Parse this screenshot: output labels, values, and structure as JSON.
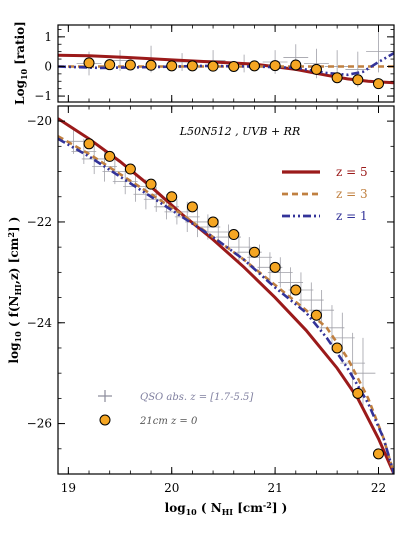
{
  "chart_data": [
    {
      "type": "line",
      "ylabel": "Log10 [ratio]",
      "xlim": [
        18.9,
        22.15
      ],
      "ylim": [
        -1.2,
        1.4
      ],
      "yticks": [
        1,
        0,
        -1
      ],
      "series": [
        {
          "name": "z = 5",
          "color": "#9b1a1a",
          "style": "solid",
          "x": [
            18.9,
            19.2,
            19.6,
            20.0,
            20.4,
            20.8,
            21.2,
            21.5,
            21.7,
            21.9,
            22.15
          ],
          "y": [
            0.38,
            0.36,
            0.3,
            0.22,
            0.15,
            0.08,
            -0.1,
            -0.3,
            -0.42,
            -0.5,
            -0.55
          ]
        },
        {
          "name": "z = 3",
          "color": "#c08040",
          "style": "dashed",
          "x": [
            18.9,
            19.5,
            20.0,
            20.5,
            21.0,
            21.4,
            21.7,
            22.0,
            22.15
          ],
          "y": [
            0.0,
            0.0,
            0.0,
            0.0,
            0.0,
            0.0,
            0.0,
            0.0,
            0.0
          ]
        },
        {
          "name": "z = 1",
          "color": "#333399",
          "style": "dashdotdot",
          "x": [
            18.9,
            19.3,
            19.8,
            20.3,
            20.8,
            21.2,
            21.5,
            21.7,
            21.85,
            22.0,
            22.15
          ],
          "y": [
            0.0,
            -0.05,
            -0.02,
            0.02,
            0.0,
            -0.05,
            -0.22,
            -0.28,
            -0.18,
            0.15,
            0.45
          ]
        }
      ],
      "points_21cm": {
        "x": [
          19.2,
          19.4,
          19.6,
          19.8,
          20.0,
          20.2,
          20.4,
          20.6,
          20.8,
          21.0,
          21.2,
          21.4,
          21.6,
          21.8,
          22.0
        ],
        "y": [
          0.12,
          0.06,
          0.05,
          0.04,
          0.02,
          0.02,
          0.01,
          0.0,
          0.02,
          0.03,
          0.05,
          -0.1,
          -0.38,
          -0.45,
          -0.58
        ]
      },
      "points_qso": {
        "x": [
          19.2,
          19.5,
          19.8,
          20.1,
          20.4,
          20.7,
          21.0,
          21.2,
          21.4,
          21.6,
          21.8,
          22.0
        ],
        "y": [
          0.1,
          0.2,
          0.25,
          0.15,
          0.2,
          0.1,
          0.15,
          0.3,
          0.1,
          0.0,
          -0.1,
          0.5
        ],
        "yerr": [
          0.4,
          0.35,
          0.45,
          0.3,
          0.35,
          0.3,
          0.4,
          0.45,
          0.5,
          0.55,
          0.6,
          0.7
        ]
      }
    },
    {
      "type": "line",
      "xlabel": "log10 ( NHI [cm^-2] )",
      "ylabel": "log10 ( f(NHI,z) [cm^2] )",
      "annotation": "L50N512 , UVB + RR",
      "xlim": [
        18.9,
        22.15
      ],
      "ylim": [
        -27,
        -19.7
      ],
      "xticks": [
        19,
        20,
        21,
        22
      ],
      "yticks": [
        -20,
        -22,
        -24,
        -26
      ],
      "legend_position": "top-right",
      "series": [
        {
          "name": "z = 5",
          "color": "#9b1a1a",
          "style": "solid",
          "x": [
            18.9,
            19.2,
            19.5,
            19.8,
            20.1,
            20.4,
            20.7,
            21.0,
            21.3,
            21.6,
            21.8,
            22.0,
            22.15
          ],
          "y": [
            -19.95,
            -20.35,
            -20.8,
            -21.3,
            -21.85,
            -22.35,
            -22.9,
            -23.5,
            -24.15,
            -24.9,
            -25.5,
            -26.3,
            -27.0
          ]
        },
        {
          "name": "z = 3",
          "color": "#c08040",
          "style": "dashed",
          "x": [
            18.9,
            19.2,
            19.5,
            19.8,
            20.1,
            20.4,
            20.7,
            21.0,
            21.3,
            21.5,
            21.7,
            21.9,
            22.05,
            22.15
          ],
          "y": [
            -20.3,
            -20.65,
            -21.05,
            -21.45,
            -21.85,
            -22.3,
            -22.75,
            -23.25,
            -23.75,
            -24.1,
            -24.7,
            -25.5,
            -26.3,
            -27.0
          ]
        },
        {
          "name": "z = 1",
          "color": "#333399",
          "style": "dashdotdot",
          "x": [
            18.9,
            19.2,
            19.5,
            19.8,
            20.1,
            20.4,
            20.7,
            21.0,
            21.3,
            21.5,
            21.7,
            21.9,
            22.05,
            22.15
          ],
          "y": [
            -20.35,
            -20.7,
            -21.1,
            -21.5,
            -21.9,
            -22.3,
            -22.75,
            -23.3,
            -23.8,
            -24.3,
            -24.9,
            -25.6,
            -26.3,
            -27.0
          ]
        }
      ],
      "points_21cm": {
        "name": "21cm    z = 0",
        "x": [
          19.2,
          19.4,
          19.6,
          19.8,
          20.0,
          20.2,
          20.4,
          20.6,
          20.8,
          21.0,
          21.2,
          21.4,
          21.6,
          21.8,
          22.0
        ],
        "y": [
          -20.45,
          -20.7,
          -20.95,
          -21.25,
          -21.5,
          -21.7,
          -22.0,
          -22.25,
          -22.6,
          -22.9,
          -23.35,
          -23.85,
          -24.5,
          -25.4,
          -26.6
        ]
      },
      "points_qso": {
        "name": "QSO abs. z = [1.7-5.5]",
        "x": [
          19.05,
          19.15,
          19.25,
          19.35,
          19.45,
          19.55,
          19.65,
          19.75,
          19.85,
          19.95,
          20.05,
          20.15,
          20.25,
          20.35,
          20.45,
          20.55,
          20.65,
          20.75,
          20.85,
          20.95,
          21.05,
          21.15,
          21.25,
          21.35,
          21.45,
          21.55,
          21.65,
          21.75,
          21.85
        ],
        "y": [
          -20.4,
          -20.6,
          -20.75,
          -20.9,
          -21.0,
          -21.2,
          -21.3,
          -21.45,
          -21.55,
          -21.7,
          -21.8,
          -21.9,
          -22.0,
          -22.1,
          -22.2,
          -22.3,
          -22.5,
          -22.6,
          -22.7,
          -22.9,
          -23.0,
          -23.2,
          -23.35,
          -23.55,
          -23.75,
          -24.1,
          -24.3,
          -24.8,
          -25.0
        ],
        "yerr": [
          0.25,
          0.25,
          0.3,
          0.3,
          0.25,
          0.25,
          0.3,
          0.3,
          0.25,
          0.25,
          0.25,
          0.3,
          0.3,
          0.25,
          0.25,
          0.25,
          0.3,
          0.3,
          0.25,
          0.3,
          0.3,
          0.3,
          0.35,
          0.35,
          0.4,
          0.45,
          0.5,
          0.6,
          0.7
        ]
      }
    }
  ]
}
